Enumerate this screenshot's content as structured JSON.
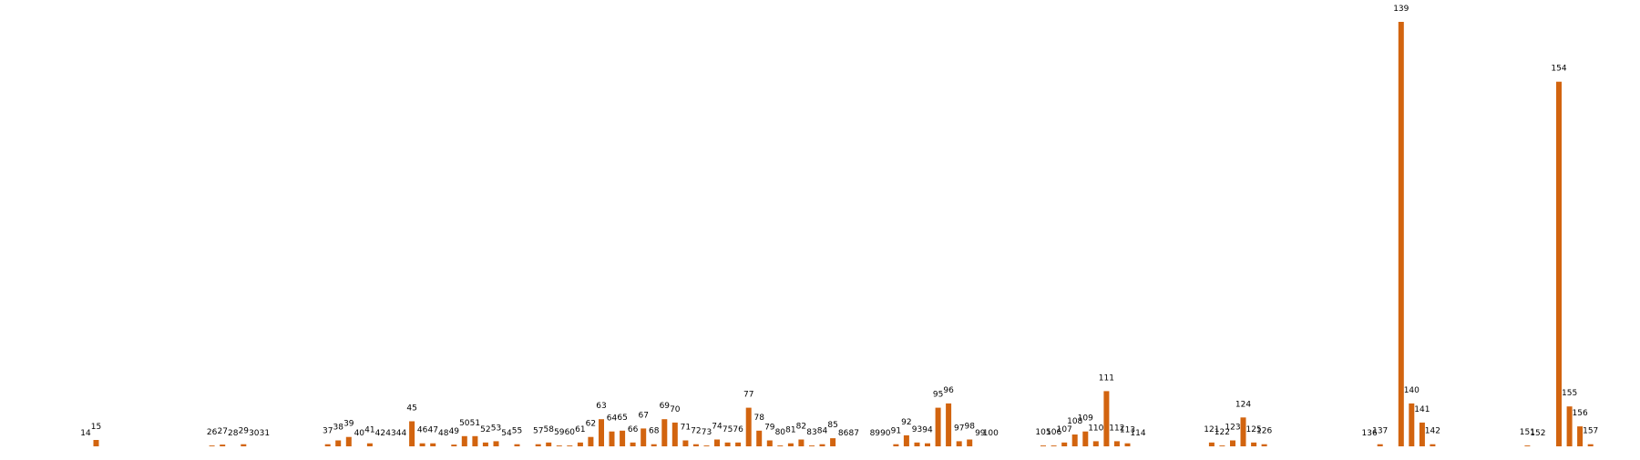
{
  "chart_data": {
    "type": "bar",
    "bar_color": "#d2640f",
    "grid": false,
    "axes_visible": false,
    "ylim": [
      0,
      100
    ],
    "data_labels": "category_above_bar",
    "points": [
      {
        "label": "14",
        "x": 14,
        "y": 0
      },
      {
        "label": "15",
        "x": 15,
        "y": 1.5
      },
      {
        "label": "26",
        "x": 26,
        "y": 0.2
      },
      {
        "label": "27",
        "x": 27,
        "y": 0.4
      },
      {
        "label": "28",
        "x": 28,
        "y": 0
      },
      {
        "label": "29",
        "x": 29,
        "y": 0.5
      },
      {
        "label": "30",
        "x": 30,
        "y": 0
      },
      {
        "label": "31",
        "x": 31,
        "y": 0
      },
      {
        "label": "37",
        "x": 37,
        "y": 0.5
      },
      {
        "label": "38",
        "x": 38,
        "y": 1.4
      },
      {
        "label": "39",
        "x": 39,
        "y": 2.2
      },
      {
        "label": "40",
        "x": 40,
        "y": 0
      },
      {
        "label": "41",
        "x": 41,
        "y": 0.7
      },
      {
        "label": "42",
        "x": 42,
        "y": 0
      },
      {
        "label": "43",
        "x": 43,
        "y": 0
      },
      {
        "label": "44",
        "x": 44,
        "y": 0
      },
      {
        "label": "45",
        "x": 45,
        "y": 5.9
      },
      {
        "label": "46",
        "x": 46,
        "y": 0.7
      },
      {
        "label": "47",
        "x": 47,
        "y": 0.7
      },
      {
        "label": "48",
        "x": 48,
        "y": 0
      },
      {
        "label": "49",
        "x": 49,
        "y": 0.4
      },
      {
        "label": "50",
        "x": 50,
        "y": 2.4
      },
      {
        "label": "51",
        "x": 51,
        "y": 2.4
      },
      {
        "label": "52",
        "x": 52,
        "y": 0.9
      },
      {
        "label": "53",
        "x": 53,
        "y": 1.2
      },
      {
        "label": "54",
        "x": 54,
        "y": 0
      },
      {
        "label": "55",
        "x": 55,
        "y": 0.5
      },
      {
        "label": "57",
        "x": 57,
        "y": 0.5
      },
      {
        "label": "58",
        "x": 58,
        "y": 0.9
      },
      {
        "label": "59",
        "x": 59,
        "y": 0.2
      },
      {
        "label": "60",
        "x": 60,
        "y": 0.2
      },
      {
        "label": "61",
        "x": 61,
        "y": 0.9
      },
      {
        "label": "62",
        "x": 62,
        "y": 2.2
      },
      {
        "label": "63",
        "x": 63,
        "y": 6.4
      },
      {
        "label": "64",
        "x": 64,
        "y": 3.5
      },
      {
        "label": "65",
        "x": 65,
        "y": 3.7
      },
      {
        "label": "66",
        "x": 66,
        "y": 0.9
      },
      {
        "label": "67",
        "x": 67,
        "y": 4.2
      },
      {
        "label": "68",
        "x": 68,
        "y": 0.5
      },
      {
        "label": "69",
        "x": 69,
        "y": 6.4
      },
      {
        "label": "70",
        "x": 70,
        "y": 5.6
      },
      {
        "label": "71",
        "x": 71,
        "y": 1.4
      },
      {
        "label": "72",
        "x": 72,
        "y": 0.5
      },
      {
        "label": "73",
        "x": 73,
        "y": 0.2
      },
      {
        "label": "74",
        "x": 74,
        "y": 1.6
      },
      {
        "label": "75",
        "x": 75,
        "y": 0.9
      },
      {
        "label": "76",
        "x": 76,
        "y": 0.9
      },
      {
        "label": "77",
        "x": 77,
        "y": 9.1
      },
      {
        "label": "78",
        "x": 78,
        "y": 3.7
      },
      {
        "label": "79",
        "x": 79,
        "y": 1.4
      },
      {
        "label": "80",
        "x": 80,
        "y": 0.2
      },
      {
        "label": "81",
        "x": 81,
        "y": 0.7
      },
      {
        "label": "82",
        "x": 82,
        "y": 1.6
      },
      {
        "label": "83",
        "x": 83,
        "y": 0.2
      },
      {
        "label": "84",
        "x": 84,
        "y": 0.5
      },
      {
        "label": "85",
        "x": 85,
        "y": 1.9
      },
      {
        "label": "86",
        "x": 86,
        "y": 0
      },
      {
        "label": "87",
        "x": 87,
        "y": 0
      },
      {
        "label": "89",
        "x": 89,
        "y": 0
      },
      {
        "label": "90",
        "x": 90,
        "y": 0
      },
      {
        "label": "91",
        "x": 91,
        "y": 0.5
      },
      {
        "label": "92",
        "x": 92,
        "y": 2.6
      },
      {
        "label": "93",
        "x": 93,
        "y": 0.9
      },
      {
        "label": "94",
        "x": 94,
        "y": 0.7
      },
      {
        "label": "95",
        "x": 95,
        "y": 9.1
      },
      {
        "label": "96",
        "x": 96,
        "y": 10.1
      },
      {
        "label": "97",
        "x": 97,
        "y": 1.2
      },
      {
        "label": "98",
        "x": 98,
        "y": 1.6
      },
      {
        "label": "99",
        "x": 99,
        "y": 0
      },
      {
        "label": "100",
        "x": 100,
        "y": 0
      },
      {
        "label": "105",
        "x": 105,
        "y": 0.2
      },
      {
        "label": "106",
        "x": 106,
        "y": 0.2
      },
      {
        "label": "107",
        "x": 107,
        "y": 0.9
      },
      {
        "label": "108",
        "x": 108,
        "y": 2.8
      },
      {
        "label": "109",
        "x": 109,
        "y": 3.5
      },
      {
        "label": "110",
        "x": 110,
        "y": 1.2
      },
      {
        "label": "111",
        "x": 111,
        "y": 13
      },
      {
        "label": "112",
        "x": 112,
        "y": 1.2
      },
      {
        "label": "113",
        "x": 113,
        "y": 0.7
      },
      {
        "label": "114",
        "x": 114,
        "y": 0
      },
      {
        "label": "121",
        "x": 121,
        "y": 0.9
      },
      {
        "label": "122",
        "x": 122,
        "y": 0.2
      },
      {
        "label": "123",
        "x": 123,
        "y": 1.4
      },
      {
        "label": "124",
        "x": 124,
        "y": 6.8
      },
      {
        "label": "125",
        "x": 125,
        "y": 0.9
      },
      {
        "label": "126",
        "x": 126,
        "y": 0.5
      },
      {
        "label": "136",
        "x": 136,
        "y": 0
      },
      {
        "label": "137",
        "x": 137,
        "y": 0.5
      },
      {
        "label": "139",
        "x": 139,
        "y": 100
      },
      {
        "label": "140",
        "x": 140,
        "y": 10.1
      },
      {
        "label": "141",
        "x": 141,
        "y": 5.6
      },
      {
        "label": "142",
        "x": 142,
        "y": 0.5
      },
      {
        "label": "151",
        "x": 151,
        "y": 0.2
      },
      {
        "label": "152",
        "x": 152,
        "y": 0
      },
      {
        "label": "154",
        "x": 154,
        "y": 85.9
      },
      {
        "label": "155",
        "x": 155,
        "y": 9.4
      },
      {
        "label": "156",
        "x": 156,
        "y": 4.7
      },
      {
        "label": "157",
        "x": 157,
        "y": 0.5
      }
    ]
  }
}
